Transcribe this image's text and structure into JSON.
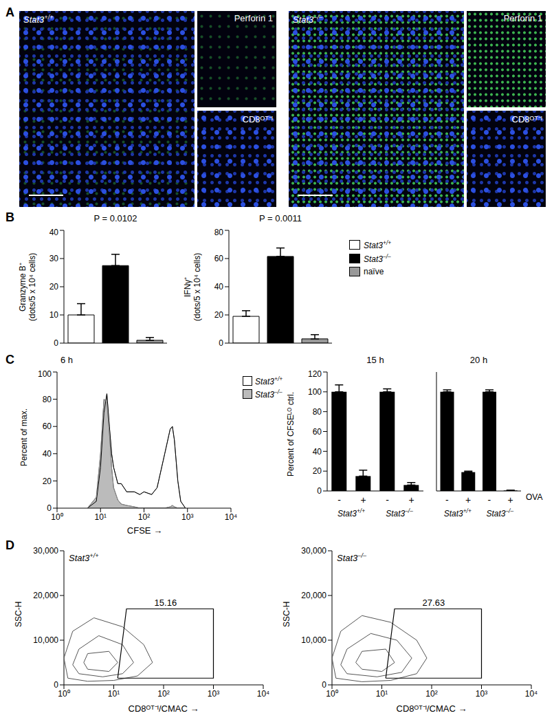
{
  "panel_labels": [
    "A",
    "B",
    "C",
    "D"
  ],
  "images": [
    {
      "label": "Stat3+/+",
      "insets": [
        "Perforin 1",
        "CD8ᴼᵀ⁻ᴵ"
      ]
    },
    {
      "label": "Stat3–/–",
      "insets": [
        "Perforin 1",
        "CD8ᴼᵀ⁻ᴵ"
      ]
    }
  ],
  "chart_data": [
    {
      "type": "bar",
      "title": "P = 0.0102",
      "y_label": [
        "Granzyme B⁺",
        "(dots/5 x 10⁴ cells)"
      ],
      "categories": [
        "Stat3+/+",
        "Stat3–/–",
        "naïve"
      ],
      "values": [
        10,
        27.5,
        1
      ],
      "error": [
        4,
        4,
        1
      ],
      "colors": [
        "#ffffff",
        "#000000",
        "#999999"
      ],
      "ylim": [
        0,
        40
      ],
      "yticks": [
        0,
        10,
        20,
        30,
        40
      ],
      "tick_labels": "y",
      "legend": "right"
    },
    {
      "type": "bar",
      "title": "P = 0.0011",
      "y_label": [
        "IFNγ⁺",
        "(dots/5 x 10⁴ cells)"
      ],
      "categories": [
        "Stat3+/+",
        "Stat3–/–",
        "naïve"
      ],
      "values": [
        19,
        61.5,
        3
      ],
      "error": [
        4,
        6,
        3
      ],
      "colors": [
        "#ffffff",
        "#000000",
        "#999999"
      ],
      "ylim": [
        0,
        80
      ],
      "yticks": [
        0,
        20,
        40,
        60,
        80
      ],
      "tick_labels": "y",
      "legend": "right"
    },
    {
      "type": "area",
      "title": "6 h",
      "x_label": "CFSE →",
      "y_label": "Percent of max.",
      "x": [
        5,
        8,
        10,
        12,
        14,
        16,
        18,
        20,
        25,
        30,
        40,
        60,
        80,
        100,
        150,
        200,
        300,
        400,
        450,
        500,
        600,
        700,
        900
      ],
      "series": [
        {
          "name": "Stat3+/+",
          "color": "#ffffff",
          "values": [
            0,
            5,
            30,
            70,
            84,
            60,
            40,
            30,
            18,
            18,
            12,
            12,
            10,
            12,
            10,
            15,
            40,
            58,
            60,
            50,
            20,
            5,
            0
          ]
        },
        {
          "name": "Stat3–/–",
          "color": "#bbbbbb",
          "values": [
            0,
            8,
            40,
            80,
            78,
            55,
            30,
            15,
            6,
            3,
            2,
            1,
            0,
            0,
            0,
            0,
            0,
            1,
            2,
            1,
            0,
            0,
            0
          ]
        }
      ],
      "xlim": [
        1,
        10000
      ],
      "xticks": [
        {
          "value": 1,
          "label": "10⁰"
        },
        {
          "value": 10,
          "label": "10¹"
        },
        {
          "value": 100,
          "label": "10²"
        },
        {
          "value": 1000,
          "label": "10³"
        },
        {
          "value": 10000,
          "label": "10⁴"
        }
      ],
      "ylim": [
        0,
        100
      ],
      "yticks": [
        0,
        20,
        40,
        60,
        80,
        100
      ],
      "log": "x",
      "legend": "right"
    },
    {
      "type": "bar",
      "title": "15 h",
      "y_label": "Percent of CFSEᴸᴼ ctrl.",
      "x_label": "OVA",
      "categories": [
        "-",
        "+",
        "-",
        "+"
      ],
      "groups": [
        "Stat3+/+",
        "Stat3–/–"
      ],
      "values": [
        100,
        15,
        100,
        6
      ],
      "error": [
        7,
        6,
        3,
        2.5
      ],
      "color": "#000000",
      "ylim": [
        0,
        120
      ],
      "yticks": [
        0,
        20,
        40,
        60,
        80,
        100,
        120
      ]
    },
    {
      "type": "bar",
      "title": "20 h",
      "x_label": "OVA",
      "categories": [
        "-",
        "+",
        "-",
        "+"
      ],
      "groups": [
        "Stat3+/+",
        "Stat3–/–"
      ],
      "values": [
        100,
        19,
        100,
        0.5
      ],
      "error": [
        2,
        1,
        2,
        0.3
      ],
      "color": "#000000",
      "ylim": [
        0,
        120
      ],
      "yticks": [
        0,
        20,
        40,
        60,
        80,
        100,
        120
      ],
      "tick_labels": "x"
    },
    {
      "type": "contour",
      "title": "Stat3+/+",
      "x_label": "CD8ᴼᵀ⁻ᴵ/CMAC →",
      "y_label": "SSC-H",
      "contours": [
        {
          "x": [
            1.2,
            3,
            10,
            30,
            60,
            40,
            15,
            4,
            1.5,
            1,
            1.2
          ],
          "y": [
            1500,
            800,
            1000,
            2000,
            5000,
            9000,
            13000,
            15000,
            12000,
            6000,
            1500
          ]
        },
        {
          "x": [
            2,
            6,
            15,
            25,
            15,
            5,
            2,
            1.5,
            2
          ],
          "y": [
            2500,
            1800,
            2500,
            5000,
            9000,
            11000,
            8000,
            4500,
            2500
          ]
        },
        {
          "x": [
            3,
            8,
            12,
            8,
            3,
            2.5,
            3
          ],
          "y": [
            3500,
            3000,
            5000,
            7500,
            7000,
            5000,
            3500
          ]
        }
      ],
      "gate": {
        "x": [
          12,
          1000,
          1000,
          18,
          12
        ],
        "y": [
          1500,
          1500,
          17000,
          17000,
          1500
        ],
        "label": "15.16"
      },
      "xlim": [
        1,
        10000
      ],
      "xticks": [
        {
          "value": 1,
          "label": "10⁰"
        },
        {
          "value": 10,
          "label": "10¹"
        },
        {
          "value": 100,
          "label": "10²"
        },
        {
          "value": 1000,
          "label": "10³"
        },
        {
          "value": 10000,
          "label": "10⁴"
        }
      ],
      "ylim": [
        0,
        30000
      ],
      "yticks": [
        0,
        {
          "value": 10000,
          "label": "10,000"
        },
        {
          "value": 20000,
          "label": "20,000"
        },
        {
          "value": 30000,
          "label": "30,000"
        }
      ],
      "log": "x"
    },
    {
      "type": "contour",
      "title": "Stat3–/–",
      "x_label": "CD8ᴼᵀ⁻ᴵ/CMAC →",
      "y_label": "SSC-H",
      "contours": [
        {
          "x": [
            1.2,
            4,
            15,
            50,
            80,
            50,
            15,
            4,
            1.5,
            1,
            1.2
          ],
          "y": [
            1500,
            700,
            1000,
            2500,
            6000,
            10000,
            14000,
            15500,
            12000,
            6000,
            1500
          ]
        },
        {
          "x": [
            2,
            8,
            25,
            40,
            20,
            6,
            2,
            1.5,
            2
          ],
          "y": [
            2500,
            1800,
            2800,
            6000,
            10000,
            11500,
            8000,
            4500,
            2500
          ]
        },
        {
          "x": [
            4,
            10,
            18,
            12,
            4,
            3,
            4
          ],
          "y": [
            3500,
            3000,
            5000,
            8000,
            7500,
            5000,
            3500
          ]
        }
      ],
      "gate": {
        "x": [
          12,
          1000,
          1000,
          18,
          12
        ],
        "y": [
          1500,
          1500,
          17000,
          17000,
          1500
        ],
        "label": "27.63"
      },
      "xlim": [
        1,
        10000
      ],
      "xticks": [
        {
          "value": 1,
          "label": "10⁰"
        },
        {
          "value": 10,
          "label": "10¹"
        },
        {
          "value": 100,
          "label": "10²"
        },
        {
          "value": 1000,
          "label": "10³"
        },
        {
          "value": 10000,
          "label": "10⁴"
        }
      ],
      "ylim": [
        0,
        30000
      ],
      "yticks": [
        0,
        {
          "value": 10000,
          "label": "10,000"
        },
        {
          "value": 20000,
          "label": "20,000"
        },
        {
          "value": 30000,
          "label": "30,000"
        }
      ],
      "log": "x"
    }
  ]
}
